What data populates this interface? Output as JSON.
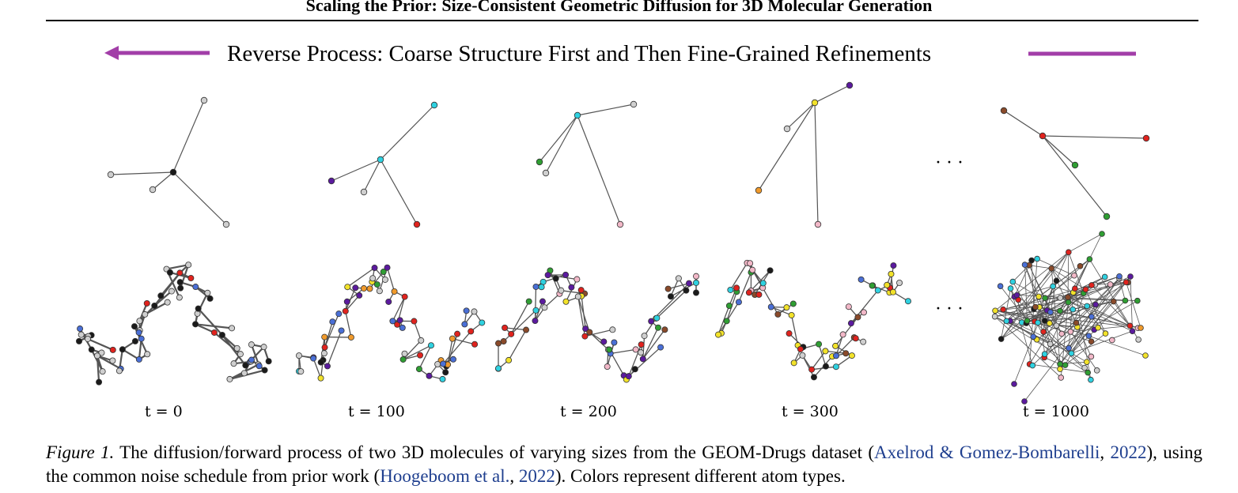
{
  "header": {
    "title": "Scaling the Prior: Size-Consistent Geometric Diffusion for 3D Molecular Generation"
  },
  "banner": {
    "text": "Reverse Process: Coarse Structure First and Then Fine-Grained Refinements",
    "arrow_color": "#a23ea8"
  },
  "panels": [
    {
      "label": "t = 0"
    },
    {
      "label": "t = 100"
    },
    {
      "label": "t = 200"
    },
    {
      "label": "t = 300"
    },
    {
      "label": "t = 1000"
    }
  ],
  "ellipsis": "· · ·",
  "caption": {
    "fig_label": "Figure 1.",
    "text1": " The diffusion/forward process of two 3D molecules of varying sizes from the GEOM-Drugs dataset (",
    "cite1": "Axelrod & Gomez-Bombarelli",
    "sep1": ", ",
    "year1": "2022",
    "text2": "), using the common noise schedule from prior work (",
    "cite2": "Hoogeboom et al.",
    "sep2": ", ",
    "year2": "2022",
    "text3": "). Colors represent different atom types."
  },
  "atom_colors": {
    "carbon": "#1a1a1a",
    "hydrogen": "#cfcfcf",
    "oxygen": "#e0231e",
    "nitrogen": "#4a6fd6",
    "fluorine": "#2fd1e0",
    "sulfur": "#f2e22a",
    "chlorine": "#2f9e33",
    "iodine": "#5b1a9e",
    "bromine": "#f09a2b",
    "phosphorus": "#f2b8c8",
    "other": "#8a4a2a"
  }
}
